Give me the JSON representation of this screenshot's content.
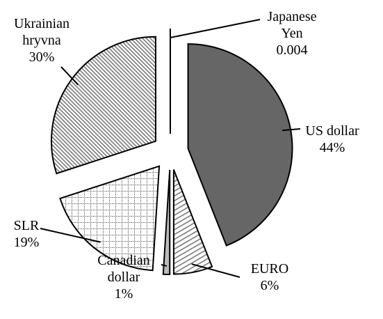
{
  "chart_data": {
    "type": "pie",
    "categories": [
      "US dollar",
      "EURO",
      "Canadian dollar",
      "SLR",
      "Ukrainian hryvna",
      "Japanese Yen"
    ],
    "values": [
      44,
      6,
      1,
      19,
      30,
      0.004
    ],
    "value_labels": [
      "44%",
      "6%",
      "1%",
      "19%",
      "30%",
      "0.004"
    ]
  }
}
